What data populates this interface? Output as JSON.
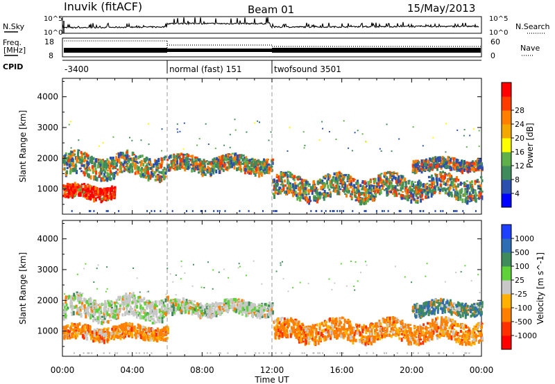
{
  "header": {
    "site": "Inuvik (fitACF)",
    "beam": "Beam 01",
    "date": "15/May/2013"
  },
  "panels": {
    "nsky_label": "N.Sky",
    "nsearch_label": "N.Search",
    "nsky_ticks": [
      "10^5",
      "10^0"
    ],
    "freq_label_1": "Freq.",
    "freq_label_2": "[MHz]",
    "freq_ticks": [
      "18",
      "8"
    ],
    "nave_ticks": [
      "60",
      "0"
    ],
    "nave_label": "Nave",
    "cpid_label": "CPID",
    "cpid_segments": [
      {
        "label": "-3400",
        "start_h": 0,
        "end_h": 6
      },
      {
        "label": "normal (fast) 151",
        "start_h": 6,
        "end_h": 12
      },
      {
        "label": "twofsound 3501",
        "start_h": 12,
        "end_h": 24
      }
    ]
  },
  "colors": {
    "power_scale": [
      "#0000ff",
      "#2a4faf",
      "#3f8b5b",
      "#5fb04a",
      "#ffff00",
      "#f2a800",
      "#ff7f00",
      "#ff3b00",
      "#ff0000"
    ],
    "velocity_scale": [
      "#1f3fff",
      "#2c6db3",
      "#3f8b5b",
      "#5fd23a",
      "#c8c8c8",
      "#ffb000",
      "#ff7f00",
      "#ff3000",
      "#ff0000"
    ]
  },
  "chart_data": [
    {
      "type": "heatmap",
      "title": "",
      "xlabel": "Time UT",
      "ylabel": "Slant Range [km]",
      "x_ticks": [
        "00:00",
        "04:00",
        "08:00",
        "12:00",
        "16:00",
        "20:00",
        "00:00"
      ],
      "y_ticks": [
        "1000",
        "2000",
        "3000",
        "4000"
      ],
      "xlim": [
        0,
        24
      ],
      "ylim": [
        180,
        4600
      ],
      "colorbar_label": "Power [dB]",
      "colorbar_ticks": [
        "4",
        "8",
        "12",
        "16",
        "20",
        "24",
        "28"
      ],
      "bands": [
        {
          "start_h": 0.0,
          "end_h": 3.0,
          "range_min": 650,
          "range_max": 1250,
          "level": "high"
        },
        {
          "start_h": 0.0,
          "end_h": 6.0,
          "range_min": 1300,
          "range_max": 2300,
          "level": "mid"
        },
        {
          "start_h": 6.0,
          "end_h": 12.0,
          "range_min": 1500,
          "range_max": 2200,
          "level": "mid"
        },
        {
          "start_h": 12.0,
          "end_h": 24.0,
          "range_min": 600,
          "range_max": 1600,
          "level": "mid"
        },
        {
          "start_h": 20.0,
          "end_h": 24.0,
          "range_min": 1600,
          "range_max": 2100,
          "level": "mixed"
        }
      ]
    },
    {
      "type": "heatmap",
      "title": "",
      "xlabel": "Time UT",
      "ylabel": "Slant Range [km]",
      "x_ticks": [
        "00:00",
        "04:00",
        "08:00",
        "12:00",
        "16:00",
        "20:00",
        "00:00"
      ],
      "y_ticks": [
        "1000",
        "2000",
        "3000",
        "4000"
      ],
      "xlim": [
        0,
        24
      ],
      "ylim": [
        180,
        4600
      ],
      "colorbar_label": "Velocity [m s^-1]",
      "colorbar_ticks": [
        "1000",
        "500",
        "100",
        "25",
        "-25",
        "-100",
        "-500",
        "-1000"
      ],
      "bands": [
        {
          "start_h": 0.0,
          "end_h": 6.0,
          "range_min": 700,
          "range_max": 1300,
          "level": "negative"
        },
        {
          "start_h": 0.0,
          "end_h": 6.0,
          "range_min": 1300,
          "range_max": 2300,
          "level": "near-zero"
        },
        {
          "start_h": 6.0,
          "end_h": 12.0,
          "range_min": 1500,
          "range_max": 2100,
          "level": "near-zero"
        },
        {
          "start_h": 12.0,
          "end_h": 24.0,
          "range_min": 600,
          "range_max": 1500,
          "level": "negative"
        },
        {
          "start_h": 20.0,
          "end_h": 24.0,
          "range_min": 1500,
          "range_max": 2100,
          "level": "positive"
        }
      ]
    }
  ]
}
